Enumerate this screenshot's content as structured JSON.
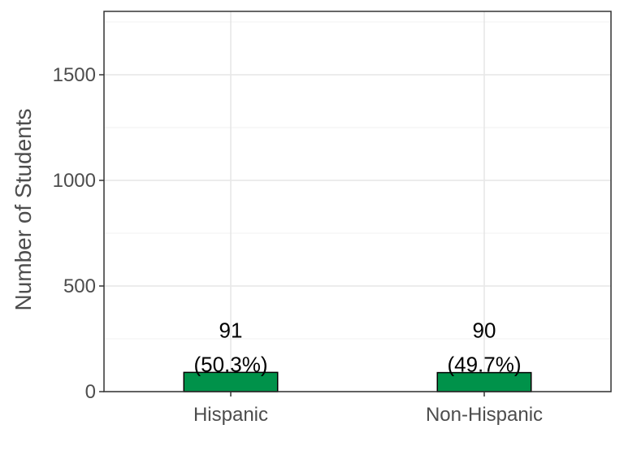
{
  "chart_data": {
    "type": "bar",
    "categories": [
      "Hispanic",
      "Non-Hispanic"
    ],
    "values": [
      91,
      90
    ],
    "percent_labels": [
      "(50.3%)",
      "(49.7%)"
    ],
    "ylabel": "Number of Students",
    "xlabel": "",
    "ylim": [
      0,
      1800
    ],
    "yticks": [
      0,
      500,
      1000,
      1500
    ],
    "grid": true,
    "bar_color": "#00924a"
  }
}
